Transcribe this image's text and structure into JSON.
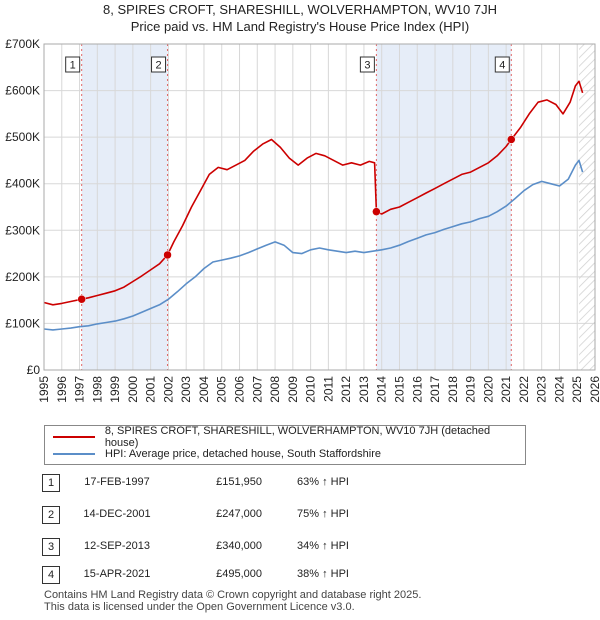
{
  "title": {
    "line1": "8, SPIRES CROFT, SHARESHILL, WOLVERHAMPTON, WV10 7JH",
    "line2": "Price paid vs. HM Land Registry's House Price Index (HPI)"
  },
  "colors": {
    "price_paid": "#cc0000",
    "hpi": "#5b8ec8",
    "shade": "#e6edf8",
    "grid": "#d8d8d8",
    "hatch": "#cfcfcf",
    "marker_line": "#e06666"
  },
  "chart_data": {
    "type": "line",
    "title": "Price paid vs. HM Land Registry's House Price Index (HPI)",
    "xlabel": "",
    "ylabel": "",
    "xlim": [
      1995,
      2026
    ],
    "ylim": [
      0,
      700000
    ],
    "y_ticks": [
      0,
      100000,
      200000,
      300000,
      400000,
      500000,
      600000,
      700000
    ],
    "y_tick_labels": [
      "£0",
      "£100K",
      "£200K",
      "£300K",
      "£400K",
      "£500K",
      "£600K",
      "£700K"
    ],
    "x_ticks": [
      1995,
      1996,
      1997,
      1998,
      1999,
      2000,
      2001,
      2002,
      2003,
      2004,
      2005,
      2006,
      2007,
      2008,
      2009,
      2010,
      2011,
      2012,
      2013,
      2014,
      2015,
      2016,
      2017,
      2018,
      2019,
      2020,
      2021,
      2022,
      2023,
      2024,
      2025,
      2026
    ],
    "x_tick_labels": [
      "1995",
      "1996",
      "1997",
      "1998",
      "1999",
      "2000",
      "2001",
      "2002",
      "2003",
      "2004",
      "2005",
      "2006",
      "2007",
      "2008",
      "2009",
      "2010",
      "2011",
      "2012",
      "2013",
      "2014",
      "2015",
      "2016",
      "2017",
      "2018",
      "2019",
      "2020",
      "2021",
      "2022",
      "2023",
      "2024",
      "2025",
      "2026"
    ],
    "shaded_ranges": [
      [
        1997.12,
        2001.95
      ],
      [
        2013.7,
        2021.29
      ]
    ],
    "hatched_from": 2025.1,
    "series": [
      {
        "name": "8, SPIRES CROFT, SHARESHILL, WOLVERHAMPTON, WV10 7JH (detached house)",
        "points": [
          [
            1995.0,
            145000
          ],
          [
            1995.5,
            140000
          ],
          [
            1996.0,
            143000
          ],
          [
            1996.5,
            147000
          ],
          [
            1997.12,
            151950
          ],
          [
            1997.5,
            155000
          ],
          [
            1998.0,
            160000
          ],
          [
            1998.5,
            165000
          ],
          [
            1999.0,
            170000
          ],
          [
            1999.5,
            178000
          ],
          [
            2000.0,
            190000
          ],
          [
            2000.5,
            202000
          ],
          [
            2001.0,
            215000
          ],
          [
            2001.5,
            228000
          ],
          [
            2001.95,
            247000
          ],
          [
            2002.3,
            275000
          ],
          [
            2002.8,
            310000
          ],
          [
            2003.3,
            350000
          ],
          [
            2003.8,
            385000
          ],
          [
            2004.3,
            420000
          ],
          [
            2004.8,
            435000
          ],
          [
            2005.3,
            430000
          ],
          [
            2005.8,
            440000
          ],
          [
            2006.3,
            450000
          ],
          [
            2006.8,
            470000
          ],
          [
            2007.3,
            485000
          ],
          [
            2007.8,
            495000
          ],
          [
            2008.3,
            478000
          ],
          [
            2008.8,
            455000
          ],
          [
            2009.3,
            440000
          ],
          [
            2009.8,
            455000
          ],
          [
            2010.3,
            465000
          ],
          [
            2010.8,
            460000
          ],
          [
            2011.3,
            450000
          ],
          [
            2011.8,
            440000
          ],
          [
            2012.3,
            445000
          ],
          [
            2012.8,
            440000
          ],
          [
            2013.3,
            448000
          ],
          [
            2013.6,
            445000
          ],
          [
            2013.7,
            340000
          ],
          [
            2014.0,
            335000
          ],
          [
            2014.5,
            345000
          ],
          [
            2015.0,
            350000
          ],
          [
            2015.5,
            360000
          ],
          [
            2016.0,
            370000
          ],
          [
            2016.5,
            380000
          ],
          [
            2017.0,
            390000
          ],
          [
            2017.5,
            400000
          ],
          [
            2018.0,
            410000
          ],
          [
            2018.5,
            420000
          ],
          [
            2019.0,
            425000
          ],
          [
            2019.5,
            435000
          ],
          [
            2020.0,
            445000
          ],
          [
            2020.5,
            460000
          ],
          [
            2021.0,
            480000
          ],
          [
            2021.29,
            495000
          ],
          [
            2021.8,
            520000
          ],
          [
            2022.3,
            550000
          ],
          [
            2022.8,
            575000
          ],
          [
            2023.3,
            580000
          ],
          [
            2023.8,
            570000
          ],
          [
            2024.2,
            550000
          ],
          [
            2024.6,
            575000
          ],
          [
            2024.9,
            610000
          ],
          [
            2025.1,
            620000
          ],
          [
            2025.3,
            595000
          ]
        ]
      },
      {
        "name": "HPI: Average price, detached house, South Staffordshire",
        "points": [
          [
            1995.0,
            88000
          ],
          [
            1995.5,
            86000
          ],
          [
            1996.0,
            88000
          ],
          [
            1996.5,
            90000
          ],
          [
            1997.0,
            93000
          ],
          [
            1997.5,
            95000
          ],
          [
            1998.0,
            99000
          ],
          [
            1998.5,
            102000
          ],
          [
            1999.0,
            105000
          ],
          [
            1999.5,
            110000
          ],
          [
            2000.0,
            116000
          ],
          [
            2000.5,
            124000
          ],
          [
            2001.0,
            132000
          ],
          [
            2001.5,
            140000
          ],
          [
            2002.0,
            152000
          ],
          [
            2002.5,
            168000
          ],
          [
            2003.0,
            185000
          ],
          [
            2003.5,
            200000
          ],
          [
            2004.0,
            218000
          ],
          [
            2004.5,
            232000
          ],
          [
            2005.0,
            236000
          ],
          [
            2005.5,
            240000
          ],
          [
            2006.0,
            245000
          ],
          [
            2006.5,
            252000
          ],
          [
            2007.0,
            260000
          ],
          [
            2007.5,
            268000
          ],
          [
            2008.0,
            275000
          ],
          [
            2008.5,
            268000
          ],
          [
            2009.0,
            252000
          ],
          [
            2009.5,
            250000
          ],
          [
            2010.0,
            258000
          ],
          [
            2010.5,
            262000
          ],
          [
            2011.0,
            258000
          ],
          [
            2011.5,
            255000
          ],
          [
            2012.0,
            252000
          ],
          [
            2012.5,
            255000
          ],
          [
            2013.0,
            252000
          ],
          [
            2013.5,
            255000
          ],
          [
            2014.0,
            258000
          ],
          [
            2014.5,
            262000
          ],
          [
            2015.0,
            268000
          ],
          [
            2015.5,
            276000
          ],
          [
            2016.0,
            283000
          ],
          [
            2016.5,
            290000
          ],
          [
            2017.0,
            295000
          ],
          [
            2017.5,
            302000
          ],
          [
            2018.0,
            308000
          ],
          [
            2018.5,
            314000
          ],
          [
            2019.0,
            318000
          ],
          [
            2019.5,
            325000
          ],
          [
            2020.0,
            330000
          ],
          [
            2020.5,
            340000
          ],
          [
            2021.0,
            352000
          ],
          [
            2021.5,
            368000
          ],
          [
            2022.0,
            385000
          ],
          [
            2022.5,
            398000
          ],
          [
            2023.0,
            405000
          ],
          [
            2023.5,
            400000
          ],
          [
            2024.0,
            395000
          ],
          [
            2024.5,
            410000
          ],
          [
            2024.9,
            440000
          ],
          [
            2025.1,
            450000
          ],
          [
            2025.3,
            425000
          ]
        ]
      }
    ],
    "sales": [
      {
        "label": "1",
        "x": 1997.12,
        "value": 151950
      },
      {
        "label": "2",
        "x": 2001.95,
        "value": 247000
      },
      {
        "label": "3",
        "x": 2013.7,
        "value": 340000
      },
      {
        "label": "4",
        "x": 2021.29,
        "value": 495000
      }
    ]
  },
  "legend": {
    "price_paid_label": "8, SPIRES CROFT, SHARESHILL, WOLVERHAMPTON, WV10 7JH (detached house)",
    "hpi_label": "HPI: Average price, detached house, South Staffordshire"
  },
  "transactions": [
    {
      "num": "1",
      "date": "17-FEB-1997",
      "price": "£151,950",
      "hpi": "63% ↑ HPI"
    },
    {
      "num": "2",
      "date": "14-DEC-2001",
      "price": "£247,000",
      "hpi": "75% ↑ HPI"
    },
    {
      "num": "3",
      "date": "12-SEP-2013",
      "price": "£340,000",
      "hpi": "34% ↑ HPI"
    },
    {
      "num": "4",
      "date": "15-APR-2021",
      "price": "£495,000",
      "hpi": "38% ↑ HPI"
    }
  ],
  "footer": {
    "line1": "Contains HM Land Registry data © Crown copyright and database right 2025.",
    "line2": "This data is licensed under the Open Government Licence v3.0."
  }
}
